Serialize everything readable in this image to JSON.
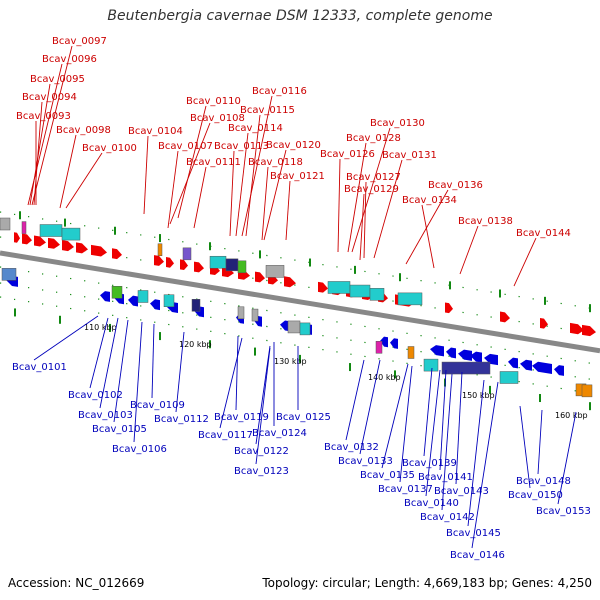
{
  "title": "Beutenbergia cavernae DSM 12333, complete genome",
  "footer": {
    "accession": "Accession: NC_012669",
    "summary": "Topology: circular; Length: 4,669,183 bp; Genes: 4,250"
  },
  "colors": {
    "forward_gene": "#ee0000",
    "reverse_gene": "#0000dd",
    "genome_axis": "#888888",
    "tick": "#118811",
    "cyan": "#22cccc",
    "navy": "#222277",
    "orange": "#ee8800",
    "magenta": "#dd22aa",
    "gray": "#aaaaaa",
    "green": "#44bb22"
  },
  "scale_labels": [
    "110 kbp",
    "120 kbp",
    "130 kbp",
    "140 kbp",
    "150 kbp",
    "160 kbp"
  ],
  "forward_labels": [
    "Bcav_0097",
    "Bcav_0096",
    "Bcav_0095",
    "Bcav_0094",
    "Bcav_0093",
    "Bcav_0098",
    "Bcav_0100",
    "Bcav_0104",
    "Bcav_0110",
    "Bcav_0108",
    "Bcav_0107",
    "Bcav_0111",
    "Bcav_0116",
    "Bcav_0115",
    "Bcav_0114",
    "Bcav_0113",
    "Bcav_0120",
    "Bcav_0118",
    "Bcav_0121",
    "Bcav_0130",
    "Bcav_0128",
    "Bcav_0126",
    "Bcav_0127",
    "Bcav_0131",
    "Bcav_0129",
    "Bcav_0136",
    "Bcav_0134",
    "Bcav_0138",
    "Bcav_0144"
  ],
  "reverse_labels": [
    "Bcav_0101",
    "Bcav_0102",
    "Bcav_0103",
    "Bcav_0105",
    "Bcav_0106",
    "Bcav_0109",
    "Bcav_0112",
    "Bcav_0119",
    "Bcav_0117",
    "Bcav_0124",
    "Bcav_0125",
    "Bcav_0122",
    "Bcav_0123",
    "Bcav_0132",
    "Bcav_0133",
    "Bcav_0135",
    "Bcav_0137",
    "Bcav_0139",
    "Bcav_0141",
    "Bcav_0140",
    "Bcav_0143",
    "Bcav_0142",
    "Bcav_0145",
    "Bcav_0146",
    "Bcav_0148",
    "Bcav_0150",
    "Bcav_0153"
  ]
}
